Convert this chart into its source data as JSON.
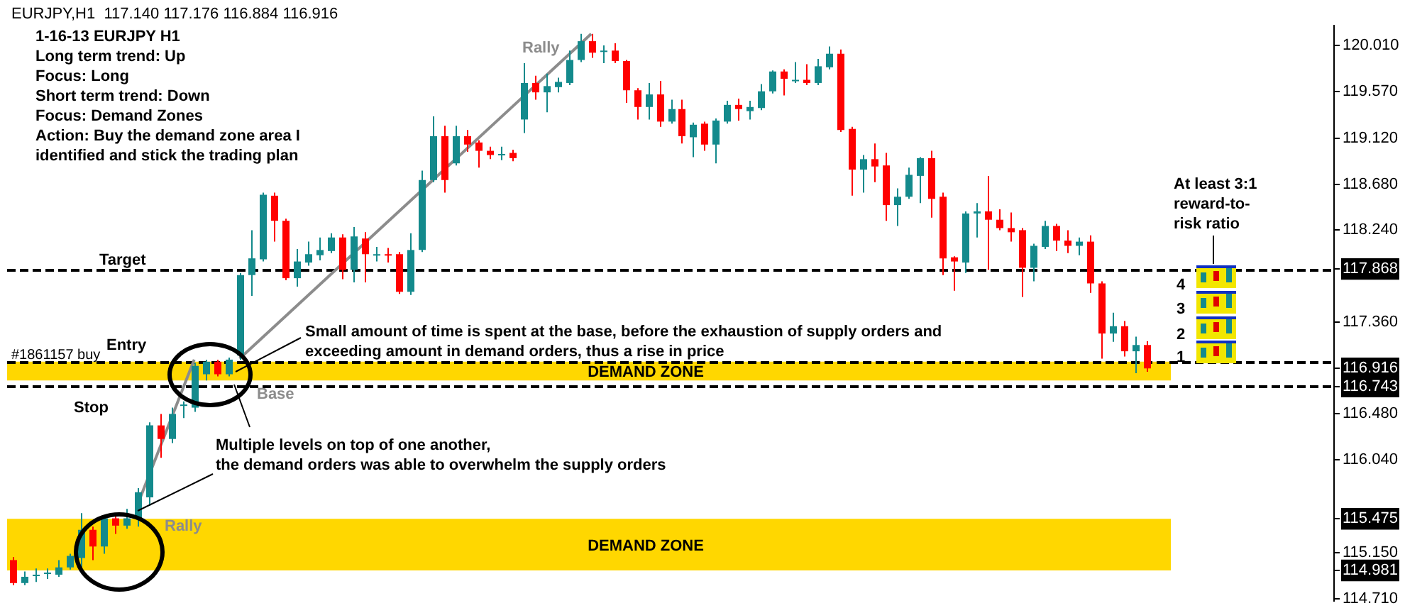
{
  "chart_data": {
    "type": "candlestick",
    "title": "1-16-13 EURJPY H1",
    "subtitle": "EURJPY,H1  117.140 117.176 116.884 116.916",
    "categories": [
      null,
      null,
      null,
      null,
      null,
      null,
      null,
      null,
      null,
      null,
      null,
      null,
      null,
      null,
      null,
      null,
      null,
      null,
      null,
      null,
      null,
      null,
      null,
      null,
      null,
      null,
      null,
      null,
      null,
      null,
      null,
      null,
      null,
      null,
      null,
      null,
      null,
      null,
      null,
      null,
      null,
      null,
      null,
      null,
      null,
      null,
      null,
      null,
      null,
      null,
      null,
      null,
      null,
      null,
      null,
      null,
      null,
      null,
      null,
      null,
      null,
      null,
      null,
      null,
      null,
      null,
      null,
      null,
      null,
      null,
      null,
      null,
      null,
      null,
      null,
      null,
      null,
      null,
      null,
      null,
      null,
      null,
      null,
      null,
      null,
      null,
      null,
      null,
      null,
      null,
      null,
      null,
      null,
      null,
      null,
      null,
      null,
      null,
      null,
      null,
      null,
      null,
      null,
      null,
      null,
      null,
      null,
      null,
      null,
      null,
      null,
      null,
      null,
      null,
      null,
      null,
      null
    ],
    "ohlc": [
      [
        115.08,
        115.11,
        114.84,
        114.86
      ],
      [
        114.86,
        114.97,
        114.84,
        114.92
      ],
      [
        114.93,
        115.0,
        114.87,
        114.94
      ],
      [
        114.96,
        115.0,
        114.9,
        114.96
      ],
      [
        114.94,
        115.08,
        114.92,
        115.01
      ],
      [
        115.01,
        115.14,
        114.99,
        115.12
      ],
      [
        115.1,
        115.53,
        114.97,
        115.37
      ],
      [
        115.37,
        115.4,
        115.08,
        115.21
      ],
      [
        115.21,
        115.5,
        115.14,
        115.48
      ],
      [
        115.48,
        115.51,
        115.33,
        115.41
      ],
      [
        115.41,
        115.57,
        115.38,
        115.48
      ],
      [
        115.48,
        115.77,
        115.4,
        115.73
      ],
      [
        115.68,
        116.4,
        115.6,
        116.37
      ],
      [
        116.37,
        116.48,
        116.06,
        116.24
      ],
      [
        116.24,
        116.54,
        116.2,
        116.48
      ],
      [
        116.56,
        116.6,
        116.44,
        116.57
      ],
      [
        116.54,
        116.97,
        116.5,
        116.94
      ],
      [
        116.86,
        117.0,
        116.8,
        116.98
      ],
      [
        116.98,
        117.0,
        116.84,
        116.86
      ],
      [
        116.86,
        117.02,
        116.84,
        117.0
      ],
      [
        117.04,
        117.83,
        117.0,
        117.81
      ],
      [
        117.81,
        118.24,
        117.61,
        117.97
      ],
      [
        117.96,
        118.6,
        117.94,
        118.58
      ],
      [
        118.57,
        118.6,
        118.13,
        118.33
      ],
      [
        118.33,
        118.35,
        117.76,
        117.78
      ],
      [
        117.78,
        118.06,
        117.7,
        117.94
      ],
      [
        117.93,
        118.13,
        117.9,
        118.01
      ],
      [
        118.0,
        118.17,
        117.95,
        118.05
      ],
      [
        118.04,
        118.21,
        118.02,
        118.17
      ],
      [
        118.17,
        118.2,
        117.77,
        117.86
      ],
      [
        117.86,
        118.27,
        117.74,
        118.18
      ],
      [
        118.16,
        118.22,
        117.74,
        118.01
      ],
      [
        118.01,
        118.08,
        117.94,
        118.01
      ],
      [
        118.01,
        118.07,
        117.93,
        118.0
      ],
      [
        118.01,
        118.03,
        117.63,
        117.65
      ],
      [
        117.65,
        118.21,
        117.62,
        118.05
      ],
      [
        118.05,
        118.81,
        118.03,
        118.72
      ],
      [
        118.72,
        119.33,
        118.7,
        119.14
      ],
      [
        119.14,
        119.24,
        118.6,
        118.72
      ],
      [
        118.88,
        119.24,
        118.86,
        119.14
      ],
      [
        119.14,
        119.2,
        118.99,
        119.06
      ],
      [
        119.08,
        119.1,
        118.84,
        119.0
      ],
      [
        119.0,
        119.04,
        118.92,
        118.96
      ],
      [
        118.97,
        119.04,
        118.91,
        118.97
      ],
      [
        118.98,
        119.01,
        118.9,
        118.93
      ],
      [
        119.3,
        119.84,
        119.17,
        119.65
      ],
      [
        119.65,
        119.72,
        119.49,
        119.56
      ],
      [
        119.56,
        119.74,
        119.37,
        119.62
      ],
      [
        119.61,
        119.7,
        119.56,
        119.66
      ],
      [
        119.65,
        119.96,
        119.63,
        119.87
      ],
      [
        119.87,
        120.12,
        119.85,
        120.05
      ],
      [
        120.05,
        120.12,
        119.89,
        119.94
      ],
      [
        119.96,
        120.01,
        119.84,
        119.96
      ],
      [
        119.96,
        120.03,
        119.84,
        119.86
      ],
      [
        119.86,
        119.87,
        119.46,
        119.58
      ],
      [
        119.58,
        119.6,
        119.3,
        119.42
      ],
      [
        119.42,
        119.65,
        119.3,
        119.54
      ],
      [
        119.54,
        119.67,
        119.23,
        119.28
      ],
      [
        119.28,
        119.49,
        119.26,
        119.4
      ],
      [
        119.4,
        119.49,
        119.07,
        119.14
      ],
      [
        119.13,
        119.27,
        118.94,
        119.25
      ],
      [
        119.26,
        119.28,
        119.0,
        119.06
      ],
      [
        119.06,
        119.31,
        118.88,
        119.29
      ],
      [
        119.28,
        119.48,
        119.26,
        119.44
      ],
      [
        119.44,
        119.5,
        119.29,
        119.4
      ],
      [
        119.38,
        119.48,
        119.3,
        119.42
      ],
      [
        119.41,
        119.64,
        119.39,
        119.57
      ],
      [
        119.57,
        119.77,
        119.55,
        119.76
      ],
      [
        119.76,
        119.78,
        119.53,
        119.69
      ],
      [
        119.68,
        119.85,
        119.65,
        119.68
      ],
      [
        119.68,
        119.83,
        119.63,
        119.65
      ],
      [
        119.65,
        119.88,
        119.63,
        119.81
      ],
      [
        119.8,
        120.0,
        119.78,
        119.93
      ],
      [
        119.93,
        119.97,
        119.18,
        119.2
      ],
      [
        119.21,
        119.23,
        118.57,
        118.82
      ],
      [
        118.82,
        118.96,
        118.6,
        118.92
      ],
      [
        118.92,
        119.07,
        118.7,
        118.85
      ],
      [
        118.86,
        118.98,
        118.33,
        118.48
      ],
      [
        118.48,
        118.64,
        118.28,
        118.56
      ],
      [
        118.56,
        118.84,
        118.54,
        118.77
      ],
      [
        118.76,
        118.94,
        118.5,
        118.93
      ],
      [
        118.93,
        119.0,
        118.36,
        118.54
      ],
      [
        118.56,
        118.6,
        117.81,
        117.97
      ],
      [
        117.98,
        117.99,
        117.66,
        117.94
      ],
      [
        117.93,
        118.42,
        117.83,
        118.4
      ],
      [
        118.4,
        118.5,
        118.17,
        118.42
      ],
      [
        118.42,
        118.76,
        117.86,
        118.34
      ],
      [
        118.34,
        118.44,
        118.24,
        118.26
      ],
      [
        118.26,
        118.41,
        118.13,
        118.22
      ],
      [
        118.24,
        118.26,
        117.6,
        117.88
      ],
      [
        117.88,
        118.11,
        117.75,
        118.09
      ],
      [
        118.08,
        118.33,
        118.06,
        118.28
      ],
      [
        118.28,
        118.3,
        118.04,
        118.14
      ],
      [
        118.14,
        118.24,
        118.02,
        118.09
      ],
      [
        118.09,
        118.17,
        118.0,
        118.13
      ],
      [
        118.13,
        118.19,
        117.64,
        117.73
      ],
      [
        117.73,
        117.75,
        117.01,
        117.25
      ],
      [
        117.25,
        117.45,
        117.17,
        117.32
      ],
      [
        117.32,
        117.37,
        117.03,
        117.08
      ],
      [
        117.08,
        117.22,
        116.87,
        117.14
      ],
      [
        117.14,
        117.176,
        116.884,
        116.916
      ],
      null,
      null,
      null,
      null,
      null,
      null,
      null,
      null,
      null,
      null,
      null,
      null,
      null,
      null,
      null,
      null
    ],
    "colors": [
      "#ff0000",
      "#138a8c",
      "#138a8c",
      "#138a8c",
      "#138a8c",
      "#138a8c",
      "#138a8c",
      "#ff0000",
      "#138a8c",
      "#ff0000",
      "#138a8c",
      "#138a8c",
      "#138a8c",
      "#ff0000",
      "#138a8c",
      "#138a8c",
      "#138a8c",
      "#138a8c",
      "#ff0000",
      "#138a8c",
      "#138a8c",
      "#138a8c",
      "#138a8c",
      "#ff0000",
      "#ff0000",
      "#138a8c",
      "#138a8c",
      "#138a8c",
      "#138a8c",
      "#ff0000",
      "#138a8c",
      "#ff0000",
      "#138a8c",
      "#ff0000",
      "#ff0000",
      "#138a8c",
      "#138a8c",
      "#138a8c",
      "#ff0000",
      "#138a8c",
      "#ff0000",
      "#ff0000",
      "#ff0000",
      "#138a8c",
      "#ff0000",
      "#138a8c",
      "#ff0000",
      "#138a8c",
      "#138a8c",
      "#138a8c",
      "#138a8c",
      "#ff0000",
      "#138a8c",
      "#ff0000",
      "#ff0000",
      "#ff0000",
      "#138a8c",
      "#ff0000",
      "#138a8c",
      "#ff0000",
      "#138a8c",
      "#ff0000",
      "#138a8c",
      "#138a8c",
      "#ff0000",
      "#138a8c",
      "#138a8c",
      "#138a8c",
      "#ff0000",
      "#138a8c",
      "#ff0000",
      "#138a8c",
      "#138a8c",
      "#ff0000",
      "#ff0000",
      "#138a8c",
      "#ff0000",
      "#ff0000",
      "#138a8c",
      "#138a8c",
      "#138a8c",
      "#ff0000",
      "#ff0000",
      "#ff0000",
      "#138a8c",
      "#138a8c",
      "#ff0000",
      "#ff0000",
      "#ff0000",
      "#ff0000",
      "#138a8c",
      "#138a8c",
      "#ff0000",
      "#ff0000",
      "#138a8c",
      "#ff0000",
      "#ff0000",
      "#138a8c",
      "#ff0000",
      "#138a8c",
      "#ff0000",
      null,
      null,
      null,
      null,
      null,
      null,
      null,
      null,
      null,
      null,
      null,
      null,
      null,
      null,
      null,
      null
    ],
    "series": [
      {
        "type": "line",
        "color": "#8c8c8c",
        "values": [
          null,
          null,
          null,
          null,
          null,
          null,
          null,
          null,
          null,
          null,
          null,
          115.61,
          null,
          null,
          null,
          null,
          117.0,
          null,
          null,
          null,
          null,
          null,
          null,
          null,
          null,
          null,
          null,
          null,
          null,
          null,
          null,
          null,
          null,
          null,
          null,
          null,
          null,
          null,
          null,
          null,
          null,
          null,
          null,
          null,
          null,
          null,
          null,
          null,
          null,
          null,
          null,
          null,
          null,
          null,
          null,
          null,
          null,
          null,
          null,
          null,
          null,
          null,
          null,
          null,
          null,
          null,
          null,
          null,
          null,
          null,
          null,
          null,
          null,
          null,
          null,
          null,
          null,
          null,
          null,
          null,
          null,
          null,
          null,
          null,
          null,
          null,
          null,
          null,
          null,
          null,
          null,
          null,
          null,
          null,
          null,
          null,
          null,
          null,
          null,
          null,
          null,
          null,
          null,
          null,
          null,
          null,
          null,
          null,
          null,
          null,
          null,
          null,
          null,
          null,
          null,
          null,
          null
        ]
      },
      {
        "type": "line",
        "color": "#8c8c8c",
        "values": [
          null,
          null,
          null,
          null,
          null,
          null,
          null,
          null,
          null,
          null,
          null,
          null,
          null,
          null,
          null,
          null,
          null,
          null,
          null,
          null,
          117.01,
          null,
          null,
          null,
          null,
          null,
          null,
          null,
          null,
          null,
          null,
          null,
          null,
          null,
          null,
          null,
          null,
          null,
          null,
          null,
          null,
          null,
          null,
          null,
          null,
          null,
          null,
          null,
          null,
          null,
          null,
          120.12,
          null,
          null,
          null,
          null,
          null,
          null,
          null,
          null,
          null,
          null,
          null,
          null,
          null,
          null,
          null,
          null,
          null,
          null,
          null,
          null,
          null,
          null,
          null,
          null,
          null,
          null,
          null,
          null,
          null,
          null,
          null,
          null,
          null,
          null,
          null,
          null,
          null,
          null,
          null,
          null,
          null,
          null,
          null,
          null,
          null,
          null,
          null,
          null,
          null,
          null,
          null,
          null,
          null,
          null,
          null,
          null,
          null,
          null,
          null,
          null,
          null,
          null,
          null,
          null,
          null
        ]
      }
    ],
    "ylim": [
      114.69,
      120.2
    ],
    "yticks": [
      {
        "value": 120.01,
        "label": "120.010"
      },
      {
        "value": 119.57,
        "label": "119.570"
      },
      {
        "value": 119.12,
        "label": "119.120"
      },
      {
        "value": 118.68,
        "label": "118.680"
      },
      {
        "value": 118.24,
        "label": "118.240"
      },
      {
        "value": 117.868,
        "label": "117.868"
      },
      {
        "value": 117.36,
        "label": "117.360"
      },
      {
        "value": 116.916,
        "label": "116.916"
      },
      {
        "value": 116.743,
        "label": "116.743"
      },
      {
        "value": 116.48,
        "label": "116.480"
      },
      {
        "value": 116.04,
        "label": "116.040"
      },
      {
        "value": 115.475,
        "label": "115.475"
      },
      {
        "value": 115.15,
        "label": "115.150"
      },
      {
        "value": 114.981,
        "label": "114.981"
      },
      {
        "value": 114.71,
        "label": "114.710"
      }
    ],
    "tick_labels": "y",
    "grid": false,
    "legend": false,
    "ref_lines": [
      {
        "axis": "y",
        "value": 117.868,
        "label": "Target",
        "color": "#000000",
        "line_style": "dashed"
      },
      {
        "axis": "y",
        "value": 116.98,
        "label": "Entry",
        "color": "#000000",
        "line_style": "dashed"
      },
      {
        "axis": "y",
        "value": 116.743,
        "label": "Stop",
        "color": "#000000",
        "line_style": "dashed"
      }
    ],
    "bands": [
      {
        "axis": "y",
        "from": 116.8,
        "to": 116.98,
        "label": "DEMAND ZONE",
        "color": "#ffd700"
      },
      {
        "axis": "y",
        "from": 114.981,
        "to": 115.475,
        "label": "DEMAND ZONE",
        "color": "#ffd700"
      }
    ],
    "annotations": [
      "Long term trend: Up",
      "Focus: Long",
      "Short term trend: Down",
      "Focus: Demand Zones",
      "Action: Buy the demand zone area I",
      "identified and stick the trading plan",
      "Rally",
      "Rally",
      "Base",
      "#1861157 buy",
      "Small amount of time is spent at the base, before the exhaustion of supply orders and",
      "exceeding amount in demand orders, thus a rise in price",
      "Multiple levels on top of one another,",
      "the demand orders was able to overwhelm the supply orders",
      "At least 3:1",
      "reward-to-",
      "risk ratio",
      "4",
      "3",
      "2",
      "1"
    ]
  }
}
